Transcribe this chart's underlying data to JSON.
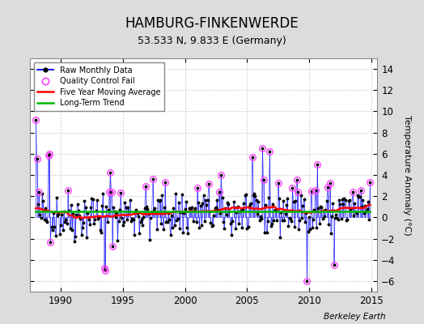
{
  "title": "HAMBURG-FINKENWERDE",
  "subtitle": "53.533 N, 9.833 E (Germany)",
  "ylabel": "Temperature Anomaly (°C)",
  "credit": "Berkeley Earth",
  "xlim": [
    1987.5,
    2015.5
  ],
  "ylim": [
    -7,
    15
  ],
  "yticks": [
    -6,
    -4,
    -2,
    0,
    2,
    4,
    6,
    8,
    10,
    12,
    14
  ],
  "xticks": [
    1990,
    1995,
    2000,
    2005,
    2010,
    2015
  ],
  "bg_color": "#dcdcdc",
  "plot_bg_color": "#ffffff",
  "raw_line_color": "#0000ff",
  "raw_marker_color": "#000000",
  "qc_fail_color": "#ff44ff",
  "moving_avg_color": "#ff0000",
  "trend_color": "#00bb00",
  "long_term_trend_value": 0.55,
  "seed": 42
}
